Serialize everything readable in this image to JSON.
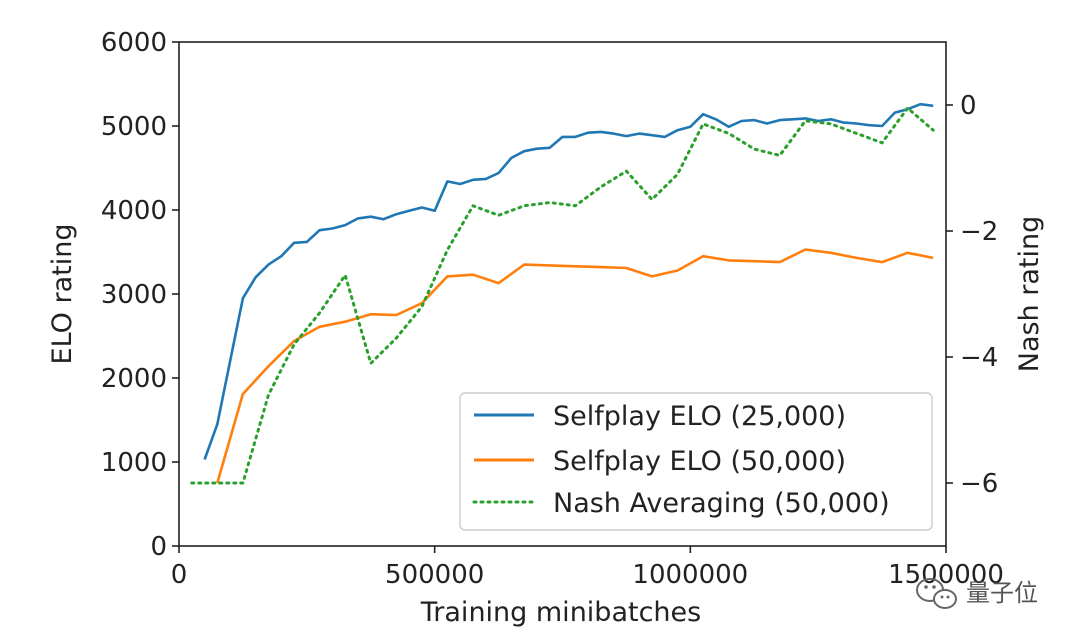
{
  "chart_data": {
    "type": "line",
    "xlabel": "Training minibatches",
    "ylabel_left": "ELO rating",
    "ylabel_right": "Nash rating",
    "xlim": [
      0,
      1500000
    ],
    "ylim_left": [
      0,
      6000
    ],
    "ylim_right": [
      -7,
      1
    ],
    "x_ticks": [
      0,
      500000,
      1000000,
      1500000
    ],
    "x_tick_labels": [
      "0",
      "500000",
      "1000000",
      "1500000"
    ],
    "y_left_ticks": [
      0,
      1000,
      2000,
      3000,
      4000,
      5000,
      6000
    ],
    "y_left_tick_labels": [
      "0",
      "1000",
      "2000",
      "3000",
      "4000",
      "5000",
      "6000"
    ],
    "y_right_ticks": [
      0,
      -2,
      -4,
      -6
    ],
    "y_right_tick_labels": [
      "0",
      "−2",
      "−4",
      "−6"
    ],
    "legend_position": "lower-right",
    "series": [
      {
        "name": "Selfplay ELO (25,000)",
        "axis": "left",
        "color": "#1f77b4",
        "style": "solid",
        "x": [
          50000,
          75000,
          100000,
          125000,
          150000,
          175000,
          200000,
          225000,
          250000,
          275000,
          300000,
          325000,
          350000,
          375000,
          400000,
          425000,
          450000,
          475000,
          500000,
          525000,
          550000,
          575000,
          600000,
          625000,
          650000,
          675000,
          700000,
          725000,
          750000,
          775000,
          800000,
          825000,
          850000,
          875000,
          900000,
          925000,
          950000,
          975000,
          1000000,
          1025000,
          1050000,
          1075000,
          1100000,
          1125000,
          1150000,
          1175000,
          1200000,
          1225000,
          1250000,
          1275000,
          1300000,
          1325000,
          1350000,
          1375000,
          1400000,
          1425000,
          1450000,
          1475000
        ],
        "values": [
          1030,
          1450,
          2200,
          2950,
          3200,
          3350,
          3450,
          3610,
          3620,
          3760,
          3780,
          3820,
          3900,
          3920,
          3890,
          3950,
          3990,
          4030,
          3990,
          4340,
          4310,
          4360,
          4370,
          4440,
          4620,
          4700,
          4730,
          4740,
          4870,
          4870,
          4920,
          4930,
          4910,
          4880,
          4910,
          4890,
          4870,
          4950,
          4990,
          5140,
          5080,
          4990,
          5060,
          5070,
          5030,
          5070,
          5080,
          5090,
          5060,
          5080,
          5040,
          5030,
          5010,
          5000,
          5160,
          5200,
          5260,
          5240
        ]
      },
      {
        "name": "Selfplay ELO (50,000)",
        "axis": "left",
        "color": "#ff7f0e",
        "style": "solid",
        "x": [
          75000,
          125000,
          175000,
          225000,
          275000,
          325000,
          375000,
          425000,
          475000,
          525000,
          575000,
          625000,
          675000,
          725000,
          775000,
          825000,
          875000,
          925000,
          975000,
          1025000,
          1075000,
          1125000,
          1175000,
          1225000,
          1275000,
          1325000,
          1375000,
          1425000,
          1475000
        ],
        "values": [
          750,
          1810,
          2140,
          2440,
          2610,
          2670,
          2760,
          2750,
          2890,
          3210,
          3230,
          3130,
          3350,
          3340,
          3330,
          3320,
          3310,
          3210,
          3280,
          3450,
          3400,
          3390,
          3380,
          3530,
          3490,
          3430,
          3380,
          3490,
          3430
        ]
      },
      {
        "name": "Nash Averaging (50,000)",
        "axis": "right",
        "color": "#2ca02c",
        "style": "dotted",
        "x": [
          25000,
          75000,
          125000,
          175000,
          225000,
          275000,
          325000,
          375000,
          425000,
          475000,
          525000,
          575000,
          625000,
          675000,
          725000,
          775000,
          825000,
          875000,
          925000,
          975000,
          1025000,
          1075000,
          1125000,
          1175000,
          1225000,
          1275000,
          1325000,
          1375000,
          1425000,
          1475000
        ],
        "values": [
          -6.0,
          -6.0,
          -6.0,
          -4.6,
          -3.8,
          -3.3,
          -2.7,
          -4.1,
          -3.7,
          -3.2,
          -2.3,
          -1.6,
          -1.75,
          -1.6,
          -1.55,
          -1.6,
          -1.3,
          -1.05,
          -1.5,
          -1.1,
          -0.3,
          -0.45,
          -0.7,
          -0.8,
          -0.25,
          -0.3,
          -0.45,
          -0.6,
          -0.05,
          -0.4
        ]
      }
    ]
  },
  "watermark": {
    "text": "量子位",
    "icon": "wechat-icon"
  }
}
